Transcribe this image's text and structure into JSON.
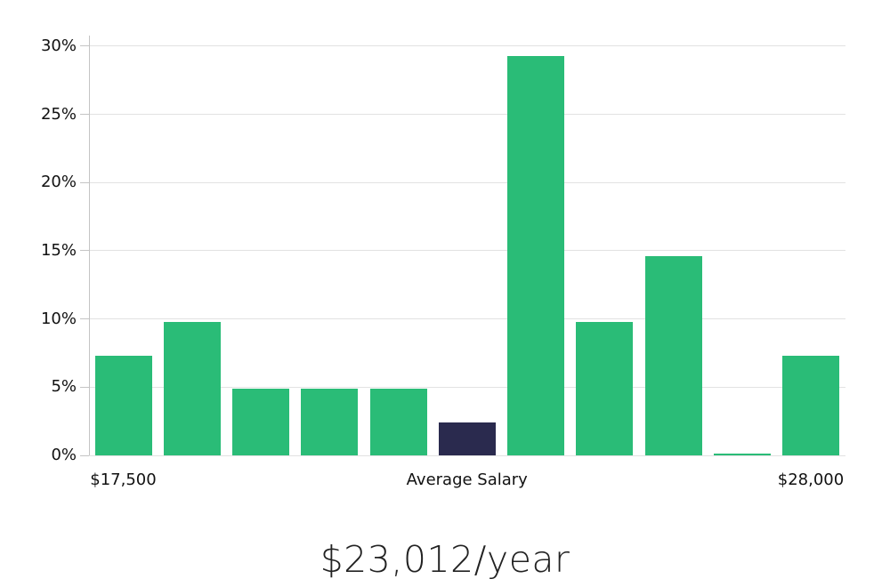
{
  "chart_data": {
    "type": "bar",
    "title": "$23,012/year",
    "values": [
      7.3,
      9.8,
      4.9,
      4.9,
      4.9,
      2.4,
      29.3,
      9.8,
      14.6,
      0.1,
      7.3
    ],
    "highlight_index": 5,
    "bar_color": "#2abc77",
    "highlight_color": "#2a2a4e",
    "y_ticks": [
      {
        "value": 0,
        "label": "0%"
      },
      {
        "value": 5,
        "label": "5%"
      },
      {
        "value": 10,
        "label": "10%"
      },
      {
        "value": 15,
        "label": "15%"
      },
      {
        "value": 20,
        "label": "20%"
      },
      {
        "value": 25,
        "label": "25%"
      },
      {
        "value": 30,
        "label": "30%"
      }
    ],
    "ylim": [
      0,
      30
    ],
    "grid": true,
    "legend": "none",
    "x_axis_labels": [
      {
        "text": "$17,500",
        "bar_index": 0
      },
      {
        "text": "Average Salary",
        "bar_index": 5
      },
      {
        "text": "$28,000",
        "bar_index": 10
      }
    ]
  }
}
